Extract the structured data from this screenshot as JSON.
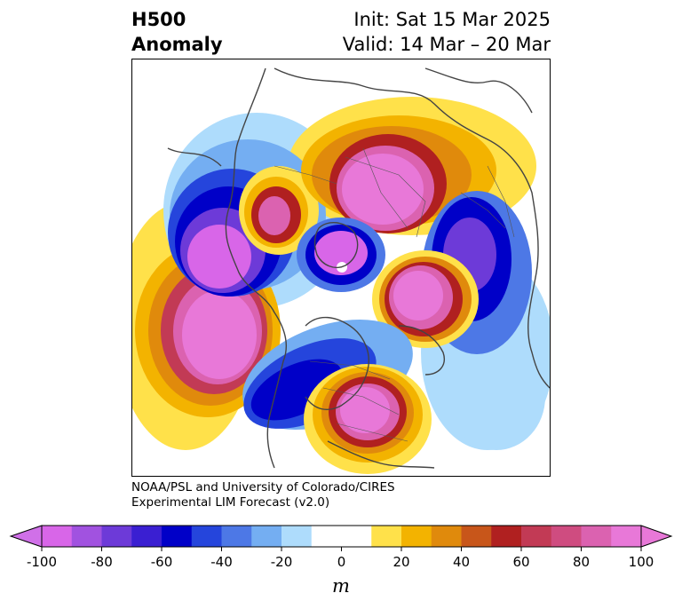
{
  "header": {
    "title_line1": "H500",
    "title_line2": "Anomaly",
    "init": "Init: Sat 15 Mar 2025",
    "valid": "Valid: 14 Mar – 20 Mar"
  },
  "credit": {
    "line1": "NOAA/PSL and University of Colorado/CIRES",
    "line2": "Experimental LIM Forecast (v2.0)"
  },
  "colorbar": {
    "units": "m",
    "ticks": [
      "-100",
      "-80",
      "-60",
      "-40",
      "-20",
      "0",
      "20",
      "40",
      "60",
      "80",
      "100"
    ],
    "colors": [
      "#d866e8",
      "#a152e0",
      "#6d3ad8",
      "#3a1fd2",
      "#0000c8",
      "#2545dc",
      "#4d78e6",
      "#74aef2",
      "#aedcfc",
      "#ffffff",
      "#ffffff",
      "#ffe14a",
      "#f3b300",
      "#e08a0c",
      "#c8561a",
      "#b02020",
      "#c23a55",
      "#cf4c80",
      "#db62b0",
      "#e878d8"
    ],
    "under_color": "#d070e8",
    "over_color": "#e878d8"
  },
  "map": {
    "projection": "north-polar-stereographic",
    "field": "500 hPa geopotential height anomaly"
  }
}
